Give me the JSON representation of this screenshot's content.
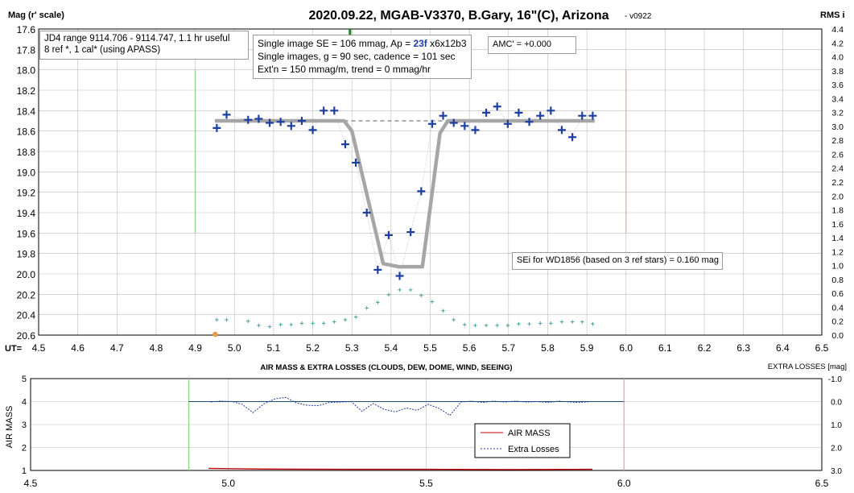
{
  "header": {
    "title": "2020.09.22, MGAB-V3370, B.Gary, 16\"(C), Arizona",
    "version": "- v0922",
    "left_label": "Mag (r' scale)",
    "right_label": "RMS i",
    "x_prefix": "UT="
  },
  "info_boxes": {
    "jd_box": [
      "JD4 range 9114.706 - 9114.747, 1.1 hr useful",
      "8 ref *, 1 cal* (using APASS)"
    ],
    "se_box": {
      "line1_pre": "Single image SE = 106 mmag, Ap = ",
      "line1_ap": "23f",
      "line1_post": " x6x12b3",
      "line2": "Single images, g = 90 sec, cadence = 101 sec",
      "line3": "Ext'n = 150 mmag/m, trend = 0 mmag/hr"
    },
    "amc_box": "AMC' = +0.000",
    "sei_box": "SEi for WD1856 (based on 3 ref stars) = 0.160 mag"
  },
  "colors": {
    "data_points": "#1f3fa0",
    "model": "#a6a6a6",
    "rms_points": "#4aa3a0",
    "green_line": "#8fd08f",
    "red_line": "#f0a0a0",
    "air_mass": "#c00000",
    "extra_losses": "#1f3fa0",
    "marker_orange": "#e69a4a",
    "zero_line": "#1f4e79",
    "accent_ap": "#1f3fa0"
  },
  "chart_data": [
    {
      "type": "scatter",
      "title": "2020.09.22, MGAB-V3370, B.Gary, 16\"(C), Arizona",
      "xlabel": "UT=",
      "ylabel": "Mag (r' scale)",
      "y2label": "RMS i",
      "xlim": [
        4.5,
        6.5
      ],
      "ylim": [
        17.6,
        20.6
      ],
      "y_inverted": true,
      "y2lim": [
        0.0,
        4.4
      ],
      "x_ticks": [
        "4.5",
        "4.6",
        "4.7",
        "4.8",
        "4.9",
        "5.0",
        "5.1",
        "5.2",
        "5.3",
        "5.4",
        "5.5",
        "5.6",
        "5.7",
        "5.8",
        "5.9",
        "6.0",
        "6.1",
        "6.2",
        "6.3",
        "6.4",
        "6.5"
      ],
      "y_ticks": [
        "17.6",
        "17.8",
        "18.0",
        "18.2",
        "18.4",
        "18.6",
        "18.8",
        "19.0",
        "19.2",
        "19.4",
        "19.6",
        "19.8",
        "20.0",
        "20.2",
        "20.4",
        "20.6"
      ],
      "y2_ticks": [
        "0.0",
        "0.2",
        "0.4",
        "0.6",
        "0.8",
        "1.0",
        "1.2",
        "1.4",
        "1.6",
        "1.8",
        "2.0",
        "2.2",
        "2.4",
        "2.6",
        "2.8",
        "3.0",
        "3.2",
        "3.4",
        "3.6",
        "3.8",
        "4.0",
        "4.2",
        "4.4"
      ],
      "grid": true,
      "series": [
        {
          "marker": "plus",
          "x": [
            4.955,
            4.98,
            5.035,
            5.062,
            5.09,
            5.118,
            5.145,
            5.172,
            5.2,
            5.228,
            5.255,
            5.283,
            5.31,
            5.338,
            5.366,
            5.394,
            5.422,
            5.45,
            5.477,
            5.505,
            5.533,
            5.56,
            5.588,
            5.615,
            5.643,
            5.671,
            5.698,
            5.726,
            5.753,
            5.781,
            5.808,
            5.836,
            5.863,
            5.888,
            5.915
          ],
          "values": [
            18.57,
            18.44,
            18.49,
            18.48,
            18.52,
            18.51,
            18.55,
            18.5,
            18.59,
            18.4,
            18.4,
            18.73,
            18.91,
            19.4,
            19.96,
            19.62,
            20.02,
            19.59,
            19.19,
            18.53,
            18.45,
            18.52,
            18.55,
            18.59,
            18.42,
            18.36,
            18.53,
            18.42,
            18.51,
            18.45,
            18.4,
            18.59,
            18.66,
            18.45,
            18.45
          ]
        },
        {
          "marker": "line",
          "x": [
            4.95,
            5.28,
            5.3,
            5.38,
            5.42,
            5.48,
            5.525,
            5.545,
            5.92
          ],
          "values": [
            18.5,
            18.5,
            18.6,
            19.9,
            19.93,
            19.93,
            18.62,
            18.5,
            18.5
          ]
        },
        {
          "marker": "dashed",
          "x": [
            5.28,
            5.545
          ],
          "values": [
            18.5,
            18.5
          ]
        },
        {
          "marker": "small-plus",
          "axis": "y2",
          "x": [
            4.955,
            4.98,
            5.035,
            5.062,
            5.09,
            5.118,
            5.145,
            5.172,
            5.2,
            5.228,
            5.255,
            5.283,
            5.31,
            5.338,
            5.366,
            5.394,
            5.422,
            5.45,
            5.477,
            5.505,
            5.533,
            5.56,
            5.588,
            5.615,
            5.643,
            5.671,
            5.698,
            5.726,
            5.753,
            5.781,
            5.808,
            5.836,
            5.863,
            5.888,
            5.915
          ],
          "values": [
            0.22,
            0.22,
            0.2,
            0.14,
            0.12,
            0.15,
            0.15,
            0.17,
            0.17,
            0.17,
            0.19,
            0.22,
            0.26,
            0.39,
            0.47,
            0.58,
            0.65,
            0.65,
            0.57,
            0.48,
            0.35,
            0.22,
            0.15,
            0.14,
            0.14,
            0.14,
            0.14,
            0.16,
            0.16,
            0.17,
            0.17,
            0.19,
            0.19,
            0.19,
            0.16
          ]
        }
      ],
      "vlines": [
        4.9,
        6.0
      ],
      "orange_marker": {
        "x": 4.955,
        "y2": 0.0
      }
    },
    {
      "type": "line",
      "title": "AIR MASS & EXTRA LOSSES (CLOUDS, DEW, DOME, WIND, SEEING)",
      "xlabel": "",
      "ylabel": "AIR MASS",
      "y2label": "EXTRA LOSSES [mag]",
      "xlim": [
        4.5,
        6.5
      ],
      "ylim": [
        1,
        5
      ],
      "y2lim": [
        -1.0,
        3.0
      ],
      "y2_inverted": true,
      "x_ticks": [
        "4.5",
        "5.0",
        "5.5",
        "6.0",
        "6.5"
      ],
      "y_ticks": [
        "1",
        "2",
        "3",
        "4",
        "5"
      ],
      "y2_ticks": [
        "-1.0",
        "0.0",
        "1.0",
        "2.0",
        "3.0"
      ],
      "grid": true,
      "legend": "center-right",
      "series": [
        {
          "name": "AIR MASS",
          "x": [
            4.95,
            5.0,
            5.1,
            5.3,
            5.5,
            5.7,
            5.92
          ],
          "values": [
            1.09,
            1.08,
            1.06,
            1.05,
            1.05,
            1.04,
            1.05
          ]
        },
        {
          "name": "Extra Losses",
          "axis": "y2",
          "x": [
            4.955,
            4.98,
            5.01,
            5.035,
            5.062,
            5.09,
            5.118,
            5.145,
            5.172,
            5.2,
            5.228,
            5.255,
            5.283,
            5.31,
            5.338,
            5.366,
            5.394,
            5.422,
            5.45,
            5.477,
            5.505,
            5.533,
            5.56,
            5.588,
            5.615,
            5.643,
            5.671,
            5.698,
            5.726,
            5.753,
            5.781,
            5.808,
            5.836,
            5.863,
            5.888,
            5.915
          ],
          "values": [
            0.02,
            -0.02,
            0.0,
            0.12,
            0.48,
            0.1,
            -0.12,
            -0.18,
            0.06,
            0.16,
            0.18,
            0.04,
            0.02,
            0.0,
            0.42,
            0.08,
            0.34,
            0.45,
            0.28,
            0.38,
            0.12,
            0.3,
            0.6,
            0.02,
            -0.02,
            0.04,
            -0.02,
            0.02,
            -0.02,
            0.02,
            0.0,
            0.04,
            -0.02,
            0.02,
            0.04,
            0.0
          ]
        }
      ],
      "hline_y2": 0.0,
      "vlines": [
        4.9,
        6.0
      ]
    }
  ]
}
